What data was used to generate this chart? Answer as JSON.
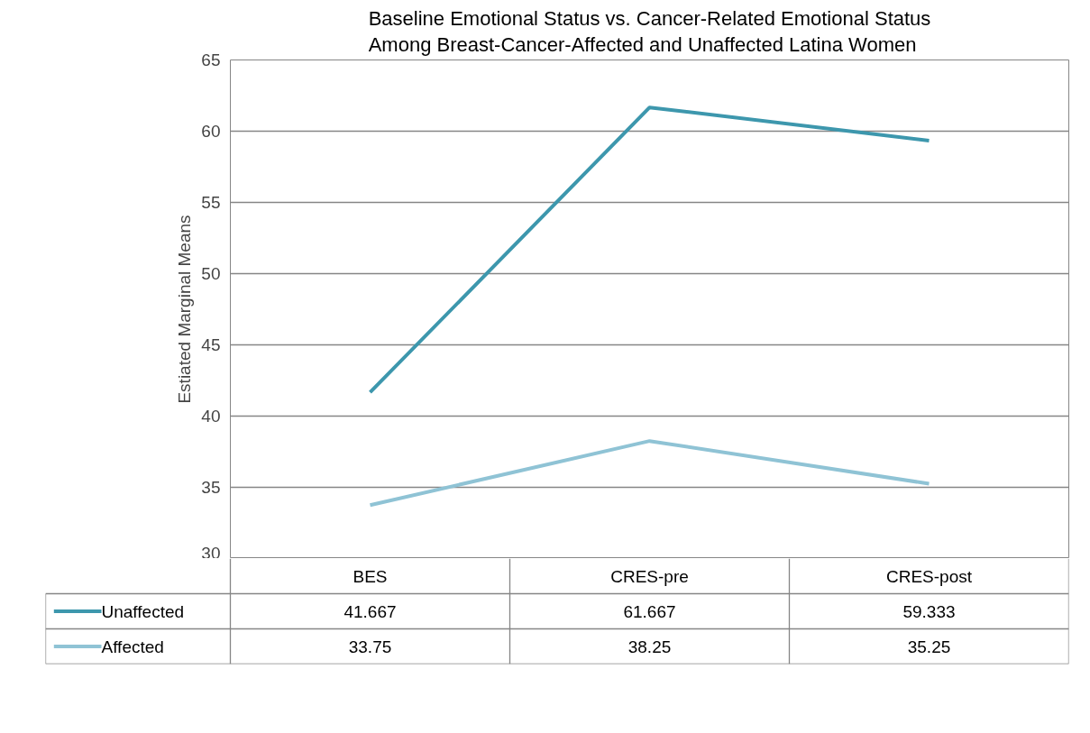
{
  "chart_data": {
    "type": "line",
    "title": "Baseline Emotional Status vs. Cancer-Related Emotional Status\nAmong Breast-Cancer-Affected and Unaffected Latina Women",
    "ylabel": "Estiated Marginal Means",
    "categories": [
      "BES",
      "CRES-pre",
      "CRES-post"
    ],
    "series": [
      {
        "name": "Unaffected",
        "color": "#3d97ad",
        "values": [
          41.667,
          61.667,
          59.333
        ]
      },
      {
        "name": "Affected",
        "color": "#8fc3d5",
        "values": [
          33.75,
          38.25,
          35.25
        ]
      }
    ],
    "ylim": [
      30,
      65
    ],
    "yticks": [
      30,
      35,
      40,
      45,
      50,
      55,
      60,
      65
    ],
    "grid": "y",
    "legend": "bottom",
    "data_labels": true,
    "marker": "none",
    "line_style": "solid"
  }
}
